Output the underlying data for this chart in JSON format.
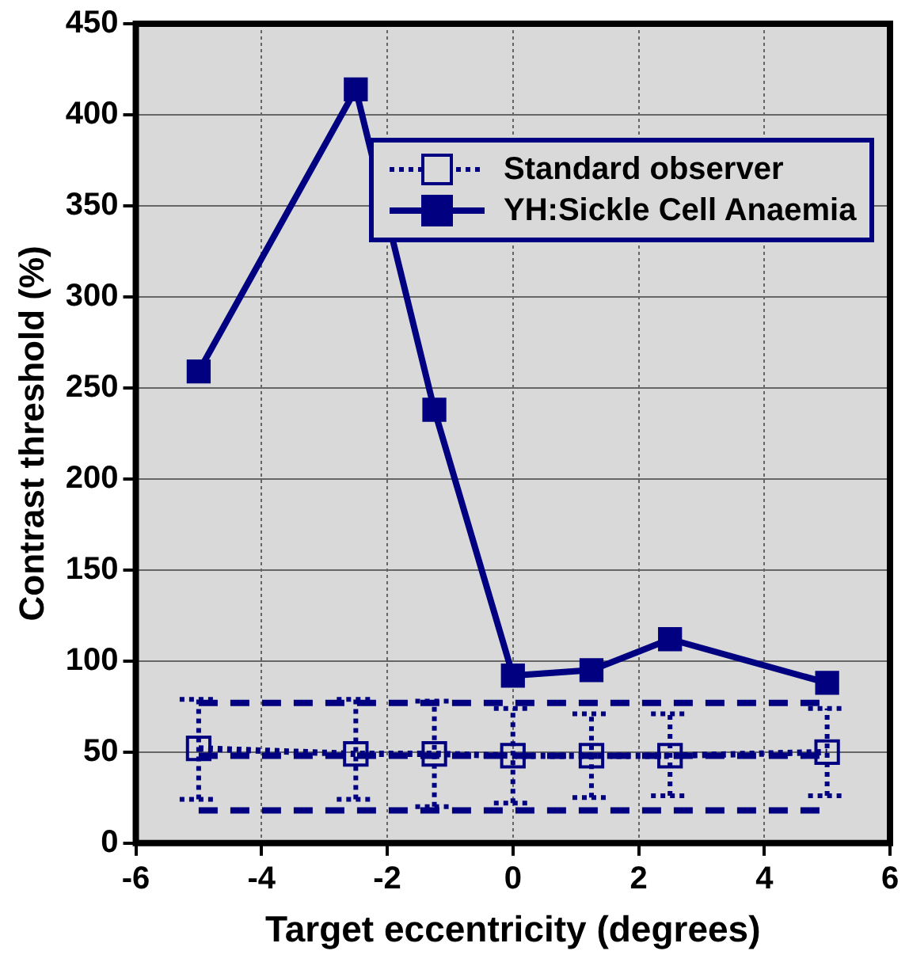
{
  "chart_data": {
    "type": "line",
    "xlabel": "Target eccentricity (degrees)",
    "ylabel": "Contrast threshold (%)",
    "xlim": [
      -6,
      6
    ],
    "xticks": [
      -6,
      -4,
      -2,
      0,
      2,
      4,
      6
    ],
    "ylim": [
      0,
      450
    ],
    "yticks": [
      0,
      50,
      100,
      150,
      200,
      250,
      300,
      350,
      400,
      450
    ],
    "grid": true,
    "legend": "top right",
    "series": [
      {
        "x": [
          -5,
          5
        ],
        "values": [
          77,
          77
        ],
        "color": "#000080",
        "line_style": "dashed",
        "marker": "none"
      },
      {
        "x": [
          -5,
          5
        ],
        "values": [
          48,
          48
        ],
        "color": "#000080",
        "line_style": "dashed",
        "marker": "none"
      },
      {
        "x": [
          -5,
          5
        ],
        "values": [
          18,
          18
        ],
        "color": "#000080",
        "line_style": "dashed",
        "marker": "none"
      },
      {
        "name": "Standard observer",
        "x": [
          -5,
          -2.5,
          -1.25,
          0,
          1.25,
          2.5,
          5
        ],
        "values": [
          52,
          49,
          49,
          48,
          48,
          48,
          50
        ],
        "color": "#000080",
        "line_style": "dotted",
        "marker": "square",
        "errors": [
          [
            24,
            79
          ],
          [
            24,
            79
          ],
          [
            20,
            78
          ],
          [
            22,
            74
          ],
          [
            25,
            71
          ],
          [
            26,
            71
          ],
          [
            26,
            74
          ]
        ]
      },
      {
        "name": "YH:Sickle Cell Anaemia",
        "x": [
          -5,
          -2.5,
          -1.25,
          0,
          1.25,
          2.5,
          5
        ],
        "values": [
          259,
          414,
          238,
          92,
          95,
          112,
          88
        ],
        "color": "#000080",
        "line_style": "solid",
        "marker": "square"
      }
    ]
  }
}
